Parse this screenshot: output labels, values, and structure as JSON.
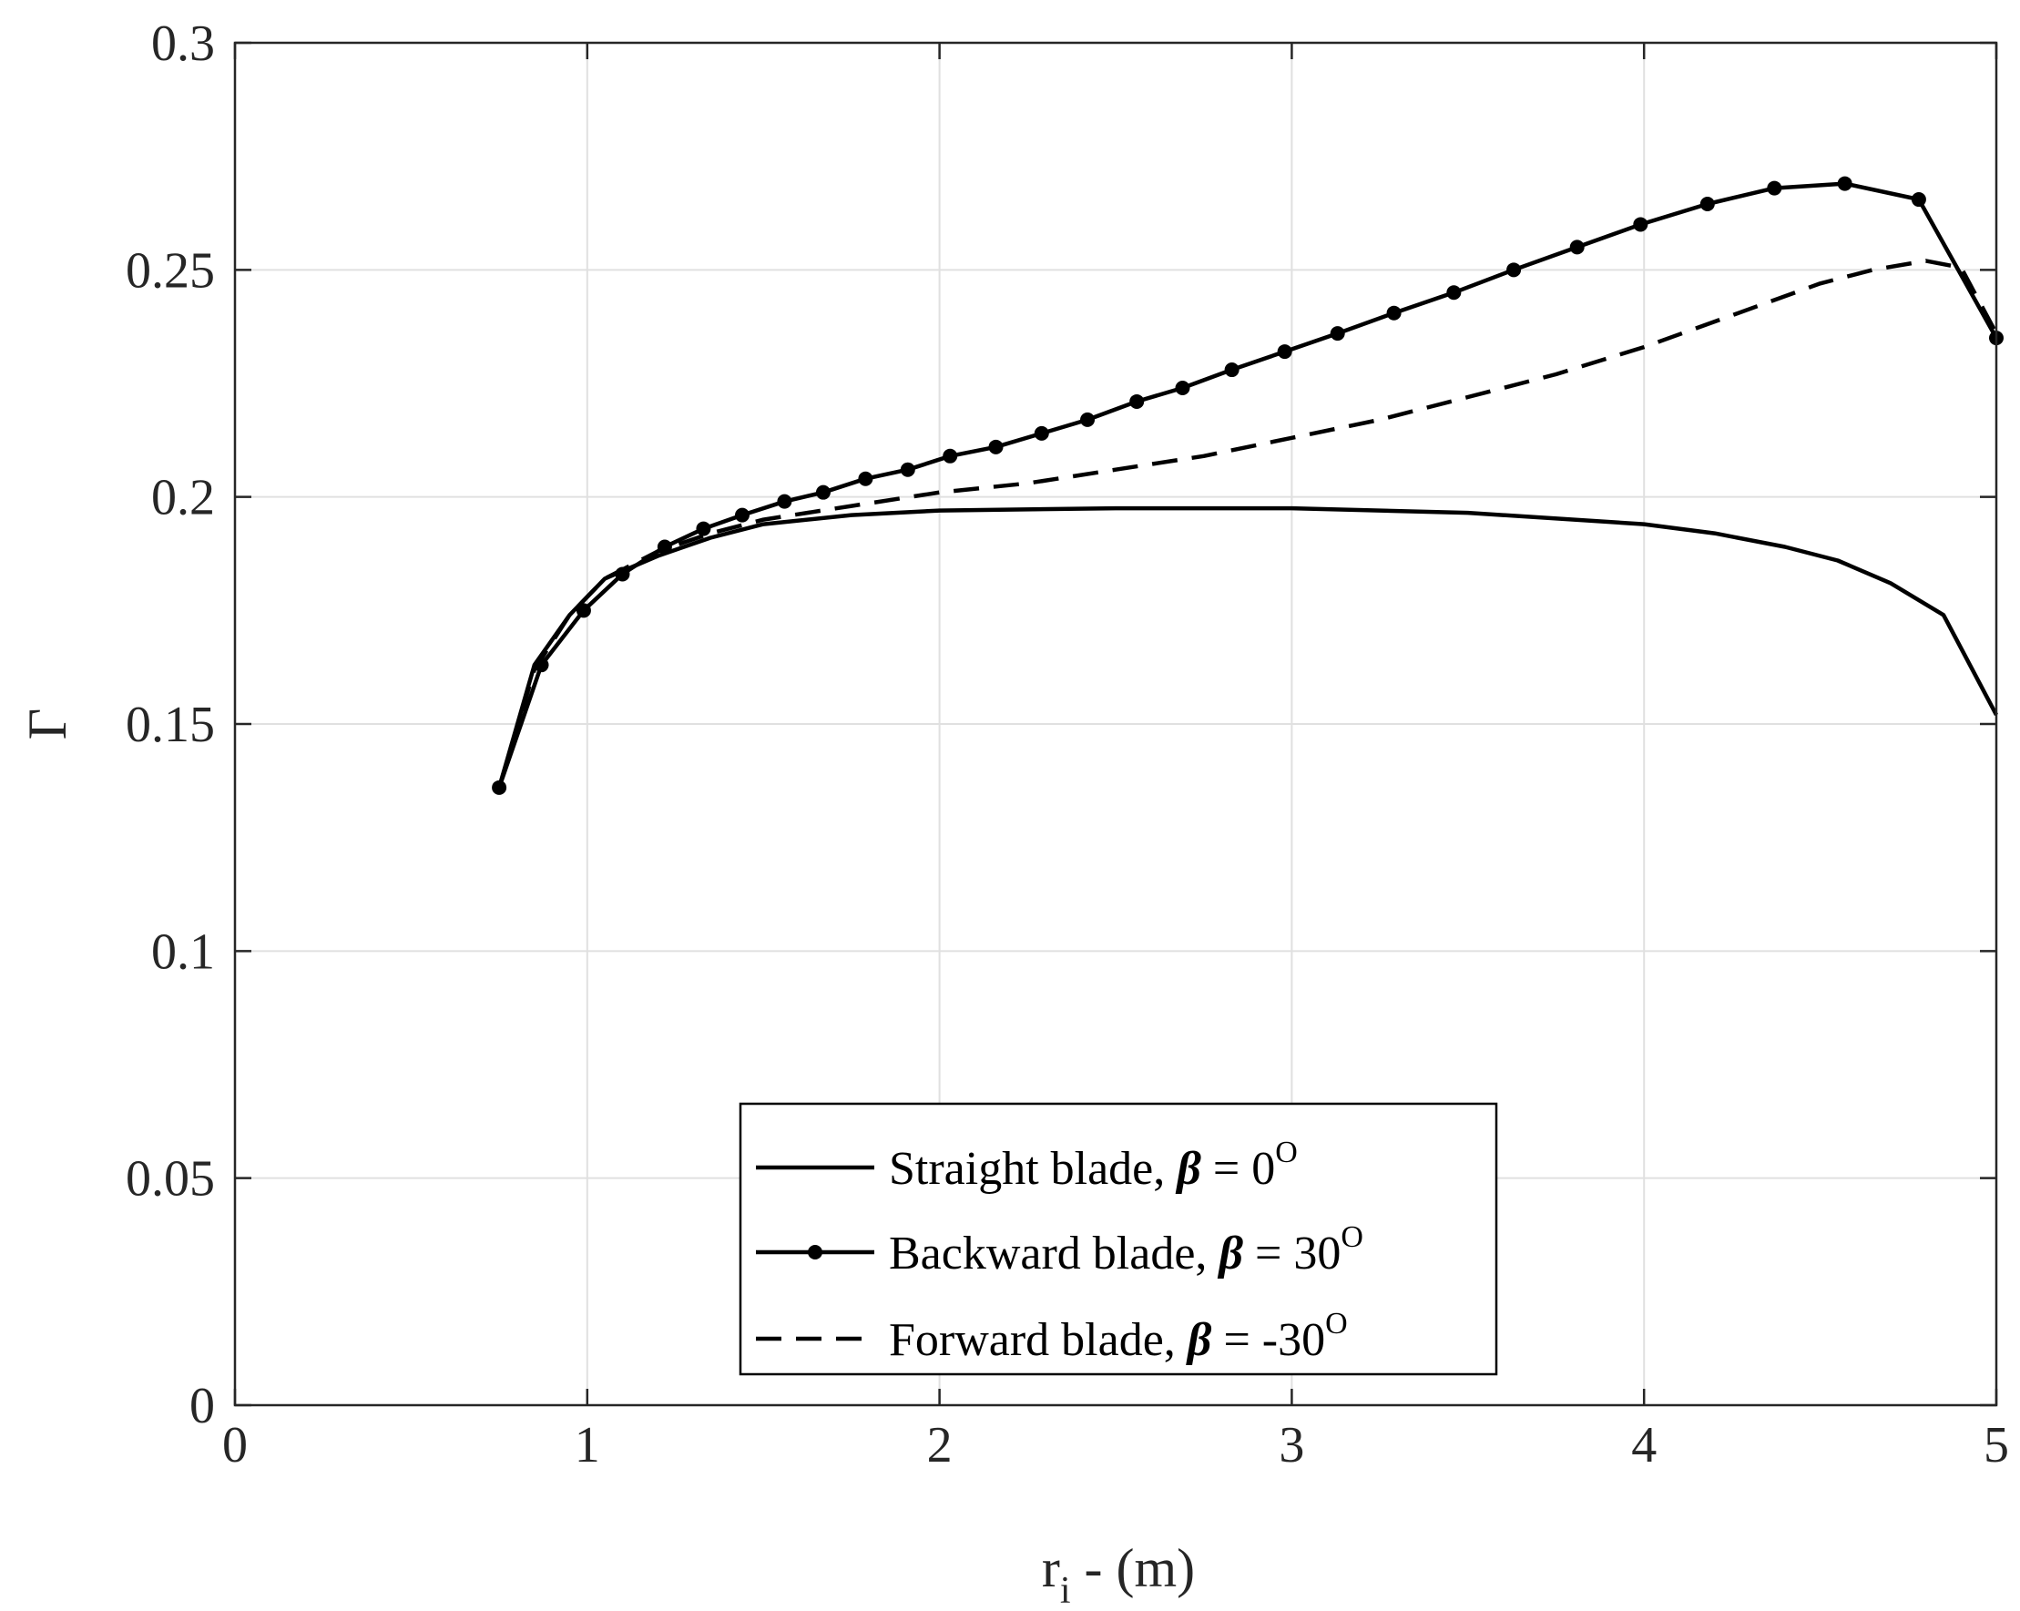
{
  "chart_data": {
    "type": "line",
    "xlabel": "r",
    "xlabel_subscript": "i",
    "xlabel_suffix": " - (m)",
    "ylabel": "Γ",
    "xlim": [
      0,
      5
    ],
    "ylim": [
      0,
      0.3
    ],
    "xticks": [
      0,
      1,
      2,
      3,
      4,
      5
    ],
    "xtick_labels": [
      "0",
      "1",
      "2",
      "3",
      "4",
      "5"
    ],
    "yticks": [
      0,
      0.05,
      0.1,
      0.15,
      0.2,
      0.25,
      0.3
    ],
    "ytick_labels": [
      "0",
      "0.05",
      "0.1",
      "0.15",
      "0.2",
      "0.25",
      "0.3"
    ],
    "grid": true,
    "legend_position": "bottom-center",
    "series": [
      {
        "name": "Straight blade, β = 0ᴼ",
        "legend_prefix": "Straight blade, ",
        "legend_beta": "β",
        "legend_eq": " = 0",
        "legend_sup": "O",
        "style": "solid",
        "color": "#000000",
        "x": [
          0.75,
          0.85,
          0.95,
          1.05,
          1.2,
          1.35,
          1.5,
          1.75,
          2.0,
          2.5,
          3.0,
          3.5,
          4.0,
          4.2,
          4.4,
          4.55,
          4.7,
          4.85,
          5.0
        ],
        "y": [
          0.136,
          0.163,
          0.174,
          0.182,
          0.187,
          0.191,
          0.194,
          0.196,
          0.197,
          0.1975,
          0.1975,
          0.1965,
          0.194,
          0.192,
          0.189,
          0.186,
          0.181,
          0.174,
          0.152
        ]
      },
      {
        "name": "Backward blade, β = 30ᴼ",
        "legend_prefix": "Backward blade, ",
        "legend_beta": "β",
        "legend_eq": " = 30",
        "legend_sup": "O",
        "style": "solid-markers",
        "color": "#000000",
        "x": [
          0.75,
          0.87,
          0.99,
          1.1,
          1.22,
          1.33,
          1.44,
          1.56,
          1.67,
          1.79,
          1.91,
          2.03,
          2.16,
          2.29,
          2.42,
          2.56,
          2.69,
          2.83,
          2.98,
          3.13,
          3.29,
          3.46,
          3.63,
          3.81,
          3.99,
          4.18,
          4.37,
          4.57,
          4.78,
          5.0
        ],
        "y": [
          0.136,
          0.163,
          0.175,
          0.183,
          0.189,
          0.193,
          0.196,
          0.199,
          0.201,
          0.204,
          0.206,
          0.209,
          0.211,
          0.214,
          0.217,
          0.221,
          0.224,
          0.228,
          0.232,
          0.236,
          0.2405,
          0.245,
          0.25,
          0.255,
          0.26,
          0.2645,
          0.268,
          0.269,
          0.2655,
          0.235
        ]
      },
      {
        "name": "Forward blade, β = -30ᴼ",
        "legend_prefix": "Forward blade, ",
        "legend_beta": "β",
        "legend_eq": " = -30",
        "legend_sup": "O",
        "style": "dashed",
        "color": "#000000",
        "x": [
          0.75,
          0.85,
          0.95,
          1.05,
          1.2,
          1.35,
          1.5,
          1.75,
          2.0,
          2.25,
          2.5,
          2.75,
          3.0,
          3.25,
          3.5,
          3.75,
          4.0,
          4.25,
          4.5,
          4.65,
          4.8,
          4.9,
          5.0
        ],
        "y": [
          0.136,
          0.162,
          0.174,
          0.182,
          0.188,
          0.192,
          0.195,
          0.198,
          0.201,
          0.203,
          0.206,
          0.209,
          0.213,
          0.217,
          0.222,
          0.227,
          0.233,
          0.24,
          0.247,
          0.25,
          0.252,
          0.2505,
          0.236
        ]
      }
    ]
  }
}
